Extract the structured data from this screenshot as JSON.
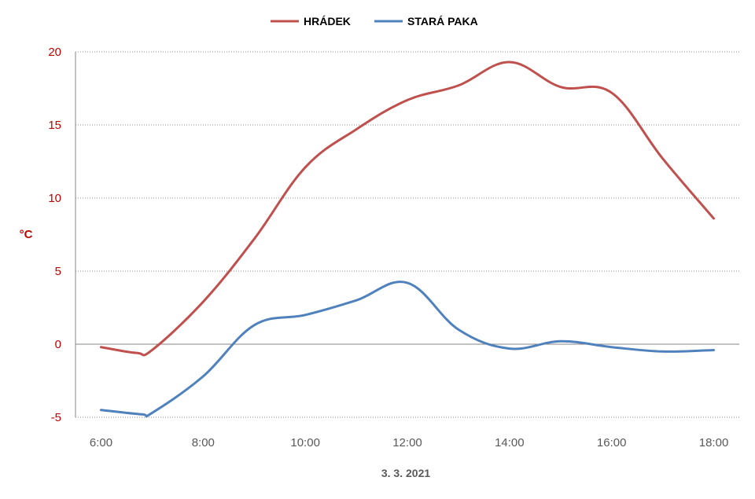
{
  "chart_data": {
    "type": "line",
    "title": "",
    "xlabel": "3. 3. 2021",
    "ylabel": "°C",
    "x_ticks": [
      "6:00",
      "8:00",
      "10:00",
      "12:00",
      "14:00",
      "16:00",
      "18:00"
    ],
    "y_ticks": [
      -5,
      0,
      5,
      10,
      15,
      20
    ],
    "ylim": [
      -5,
      20
    ],
    "xlim_hours": [
      5.5,
      18.5
    ],
    "grid": true,
    "legend_position": "top-center",
    "series": [
      {
        "name": "HRÁDEK",
        "color": "#c0504d",
        "x_hours": [
          6,
          6.7,
          7,
          8,
          9,
          10,
          11,
          12,
          13,
          14,
          15,
          16,
          17,
          18
        ],
        "values": [
          -0.2,
          -0.6,
          -0.4,
          2.9,
          7.2,
          12.1,
          14.7,
          16.7,
          17.7,
          19.3,
          17.6,
          17.2,
          12.7,
          8.6
        ]
      },
      {
        "name": "STARÁ PAKA",
        "color": "#4f81bd",
        "x_hours": [
          6,
          6.8,
          7,
          8,
          9,
          10,
          11,
          12,
          13,
          14,
          15,
          16,
          17,
          18
        ],
        "values": [
          -4.5,
          -4.8,
          -4.7,
          -2.2,
          1.3,
          2.0,
          3.0,
          4.2,
          1.0,
          -0.3,
          0.2,
          -0.2,
          -0.5,
          -0.4
        ]
      }
    ]
  }
}
